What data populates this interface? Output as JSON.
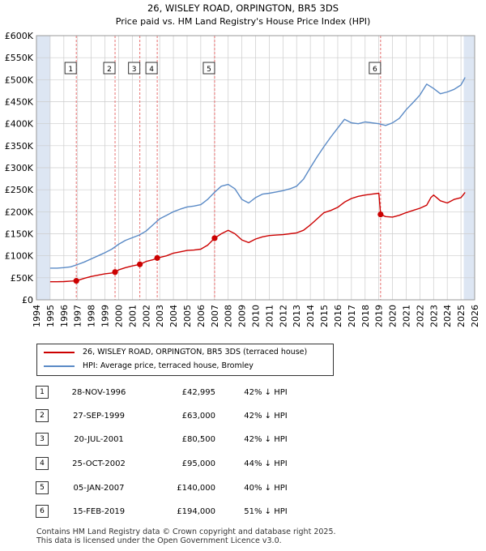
{
  "colors": {
    "property_line": "#cc0000",
    "hpi_line": "#5a8ac6",
    "shade": "#dde6f3",
    "grid": "#cccccc",
    "vline": "#e87070"
  },
  "chart_data": {
    "type": "line",
    "title": "26, WISLEY ROAD, ORPINGTON, BR5 3DS",
    "subtitle": "Price paid vs. HM Land Registry's House Price Index (HPI)",
    "xlabel": "",
    "ylabel": "",
    "xlim": [
      1994.0,
      2026.0
    ],
    "ylim": [
      0,
      600000
    ],
    "y_ticks": [
      0,
      50000,
      100000,
      150000,
      200000,
      250000,
      300000,
      350000,
      400000,
      450000,
      500000,
      550000,
      600000
    ],
    "y_tick_labels": [
      "£0",
      "£50K",
      "£100K",
      "£150K",
      "£200K",
      "£250K",
      "£300K",
      "£350K",
      "£400K",
      "£450K",
      "£500K",
      "£550K",
      "£600K"
    ],
    "x_ticks": [
      1994,
      1995,
      1996,
      1997,
      1998,
      1999,
      2000,
      2001,
      2002,
      2003,
      2004,
      2005,
      2006,
      2007,
      2008,
      2009,
      2010,
      2011,
      2012,
      2013,
      2014,
      2015,
      2016,
      2017,
      2018,
      2019,
      2020,
      2021,
      2022,
      2023,
      2024,
      2025,
      2026
    ],
    "x_tick_labels": [
      "1994",
      "1995",
      "1996",
      "1997",
      "1998",
      "1999",
      "2000",
      "2001",
      "2002",
      "2003",
      "2004",
      "2005",
      "2006",
      "2007",
      "2008",
      "2009",
      "2010",
      "2011",
      "2012",
      "2013",
      "2014",
      "2015",
      "2016",
      "2017",
      "2018",
      "2019",
      "2020",
      "2021",
      "2022",
      "2023",
      "2024",
      "2025",
      "2026"
    ],
    "shaded_ranges": [
      [
        1994.0,
        1995.0
      ],
      [
        2025.2,
        2026.0
      ]
    ],
    "grid": true,
    "series": [
      {
        "name": "26, WISLEY ROAD, ORPINGTON, BR5 3DS (terraced house)",
        "color": "#cc0000",
        "x": [
          1995.0,
          1995.5,
          1996.0,
          1996.5,
          1996.91,
          1997.5,
          1998.0,
          1998.5,
          1999.0,
          1999.5,
          1999.74,
          2000.0,
          2000.5,
          2001.0,
          2001.55,
          2002.0,
          2002.5,
          2002.82,
          2003.5,
          2004.0,
          2004.5,
          2005.0,
          2005.5,
          2006.0,
          2006.5,
          2007.01,
          2007.5,
          2008.0,
          2008.5,
          2009.0,
          2009.5,
          2010.0,
          2010.5,
          2011.0,
          2011.5,
          2012.0,
          2012.5,
          2013.0,
          2013.5,
          2014.0,
          2014.5,
          2015.0,
          2015.5,
          2016.0,
          2016.5,
          2017.0,
          2017.5,
          2018.0,
          2018.5,
          2019.0,
          2019.13,
          2019.5,
          2020.0,
          2020.5,
          2021.0,
          2021.5,
          2022.0,
          2022.5,
          2022.8,
          2023.0,
          2023.5,
          2024.0,
          2024.5,
          2025.0,
          2025.3
        ],
        "values": [
          41000,
          41000,
          41500,
          42500,
          42995,
          49000,
          53000,
          56000,
          59000,
          61000,
          63000,
          68000,
          73000,
          77000,
          80500,
          87000,
          91000,
          95000,
          100000,
          106000,
          109000,
          112000,
          113000,
          115000,
          124000,
          140000,
          150000,
          158000,
          150000,
          136000,
          130000,
          138000,
          143000,
          146000,
          147000,
          148000,
          150000,
          152000,
          158000,
          170000,
          184000,
          198000,
          203000,
          210000,
          222000,
          230000,
          235000,
          238000,
          240000,
          242000,
          194000,
          189000,
          188000,
          192000,
          198000,
          203000,
          208000,
          215000,
          232000,
          238000,
          225000,
          220000,
          228000,
          232000,
          244000
        ]
      },
      {
        "name": "HPI: Average price, terraced house, Bromley",
        "color": "#5a8ac6",
        "x": [
          1995.0,
          1995.5,
          1996.0,
          1996.5,
          1997.0,
          1997.5,
          1998.0,
          1998.5,
          1999.0,
          1999.5,
          2000.0,
          2000.5,
          2001.0,
          2001.5,
          2002.0,
          2002.5,
          2003.0,
          2003.5,
          2004.0,
          2004.5,
          2005.0,
          2005.5,
          2006.0,
          2006.5,
          2007.0,
          2007.5,
          2008.0,
          2008.5,
          2009.0,
          2009.5,
          2010.0,
          2010.5,
          2011.0,
          2011.5,
          2012.0,
          2012.5,
          2013.0,
          2013.5,
          2014.0,
          2014.5,
          2015.0,
          2015.5,
          2016.0,
          2016.5,
          2017.0,
          2017.5,
          2018.0,
          2018.5,
          2019.0,
          2019.5,
          2020.0,
          2020.5,
          2021.0,
          2021.5,
          2022.0,
          2022.5,
          2023.0,
          2023.5,
          2024.0,
          2024.5,
          2025.0,
          2025.3
        ],
        "values": [
          72000,
          72000,
          73000,
          75000,
          80000,
          86000,
          93000,
          100000,
          107000,
          115000,
          126000,
          135000,
          141000,
          147000,
          156000,
          170000,
          184000,
          192000,
          200000,
          206000,
          211000,
          213000,
          216000,
          228000,
          244000,
          258000,
          262000,
          252000,
          228000,
          220000,
          232000,
          240000,
          242000,
          245000,
          248000,
          252000,
          258000,
          274000,
          300000,
          325000,
          348000,
          370000,
          390000,
          410000,
          402000,
          400000,
          404000,
          402000,
          400000,
          396000,
          402000,
          412000,
          432000,
          448000,
          465000,
          490000,
          480000,
          468000,
          472000,
          478000,
          488000,
          505000
        ]
      }
    ],
    "sales": [
      {
        "num": "1",
        "x": 1996.91,
        "value": 42995
      },
      {
        "num": "2",
        "x": 1999.74,
        "value": 63000
      },
      {
        "num": "3",
        "x": 2001.55,
        "value": 80500
      },
      {
        "num": "4",
        "x": 2002.82,
        "value": 95000
      },
      {
        "num": "5",
        "x": 2007.01,
        "value": 140000
      },
      {
        "num": "6",
        "x": 2019.13,
        "value": 194000
      }
    ]
  },
  "legend": {
    "property_label": "26, WISLEY ROAD, ORPINGTON, BR5 3DS (terraced house)",
    "hpi_label": "HPI: Average price, terraced house, Bromley"
  },
  "sales_table": [
    {
      "num": "1",
      "date": "28-NOV-1996",
      "price": "£42,995",
      "hpi": "42% ↓ HPI"
    },
    {
      "num": "2",
      "date": "27-SEP-1999",
      "price": "£63,000",
      "hpi": "42% ↓ HPI"
    },
    {
      "num": "3",
      "date": "20-JUL-2001",
      "price": "£80,500",
      "hpi": "42% ↓ HPI"
    },
    {
      "num": "4",
      "date": "25-OCT-2002",
      "price": "£95,000",
      "hpi": "44% ↓ HPI"
    },
    {
      "num": "5",
      "date": "05-JAN-2007",
      "price": "£140,000",
      "hpi": "40% ↓ HPI"
    },
    {
      "num": "6",
      "date": "15-FEB-2019",
      "price": "£194,000",
      "hpi": "51% ↓ HPI"
    }
  ],
  "footer": {
    "line1": "Contains HM Land Registry data © Crown copyright and database right 2025.",
    "line2": "This data is licensed under the Open Government Licence v3.0."
  }
}
